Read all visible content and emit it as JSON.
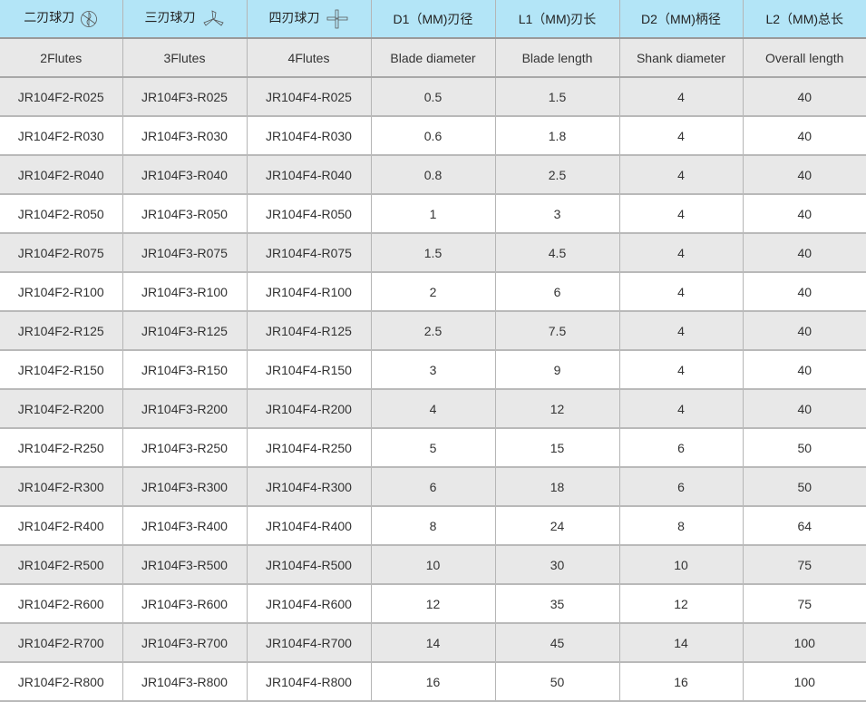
{
  "colors": {
    "header_bg": "#b3e5f7",
    "alt_row_bg": "#e8e8e8"
  },
  "header": [
    {
      "label": "二刃球刀",
      "icon": "two-flute-ball-cutter-icon"
    },
    {
      "label": "三刃球刀",
      "icon": "three-flute-ball-cutter-icon"
    },
    {
      "label": "四刃球刀",
      "icon": "four-flute-ball-cutter-icon"
    },
    {
      "label": "D1（MM)刃径"
    },
    {
      "label": "L1（MM)刃长"
    },
    {
      "label": "D2（MM)柄径"
    },
    {
      "label": "L2（MM)总长"
    }
  ],
  "subheader": [
    "2Flutes",
    "3Flutes",
    "4Flutes",
    "Blade diameter",
    "Blade length",
    "Shank diameter",
    "Overall length"
  ],
  "rows": [
    [
      "JR104F2-R025",
      "JR104F3-R025",
      "JR104F4-R025",
      "0.5",
      "1.5",
      "4",
      "40"
    ],
    [
      "JR104F2-R030",
      "JR104F3-R030",
      "JR104F4-R030",
      "0.6",
      "1.8",
      "4",
      "40"
    ],
    [
      "JR104F2-R040",
      "JR104F3-R040",
      "JR104F4-R040",
      "0.8",
      "2.5",
      "4",
      "40"
    ],
    [
      "JR104F2-R050",
      "JR104F3-R050",
      "JR104F4-R050",
      "1",
      "3",
      "4",
      "40"
    ],
    [
      "JR104F2-R075",
      "JR104F3-R075",
      "JR104F4-R075",
      "1.5",
      "4.5",
      "4",
      "40"
    ],
    [
      "JR104F2-R100",
      "JR104F3-R100",
      "JR104F4-R100",
      "2",
      "6",
      "4",
      "40"
    ],
    [
      "JR104F2-R125",
      "JR104F3-R125",
      "JR104F4-R125",
      "2.5",
      "7.5",
      "4",
      "40"
    ],
    [
      "JR104F2-R150",
      "JR104F3-R150",
      "JR104F4-R150",
      "3",
      "9",
      "4",
      "40"
    ],
    [
      "JR104F2-R200",
      "JR104F3-R200",
      "JR104F4-R200",
      "4",
      "12",
      "4",
      "40"
    ],
    [
      "JR104F2-R250",
      "JR104F3-R250",
      "JR104F4-R250",
      "5",
      "15",
      "6",
      "50"
    ],
    [
      "JR104F2-R300",
      "JR104F3-R300",
      "JR104F4-R300",
      "6",
      "18",
      "6",
      "50"
    ],
    [
      "JR104F2-R400",
      "JR104F3-R400",
      "JR104F4-R400",
      "8",
      "24",
      "8",
      "64"
    ],
    [
      "JR104F2-R500",
      "JR104F3-R500",
      "JR104F4-R500",
      "10",
      "30",
      "10",
      "75"
    ],
    [
      "JR104F2-R600",
      "JR104F3-R600",
      "JR104F4-R600",
      "12",
      "35",
      "12",
      "75"
    ],
    [
      "JR104F2-R700",
      "JR104F3-R700",
      "JR104F4-R700",
      "14",
      "45",
      "14",
      "100"
    ],
    [
      "JR104F2-R800",
      "JR104F3-R800",
      "JR104F4-R800",
      "16",
      "50",
      "16",
      "100"
    ]
  ]
}
